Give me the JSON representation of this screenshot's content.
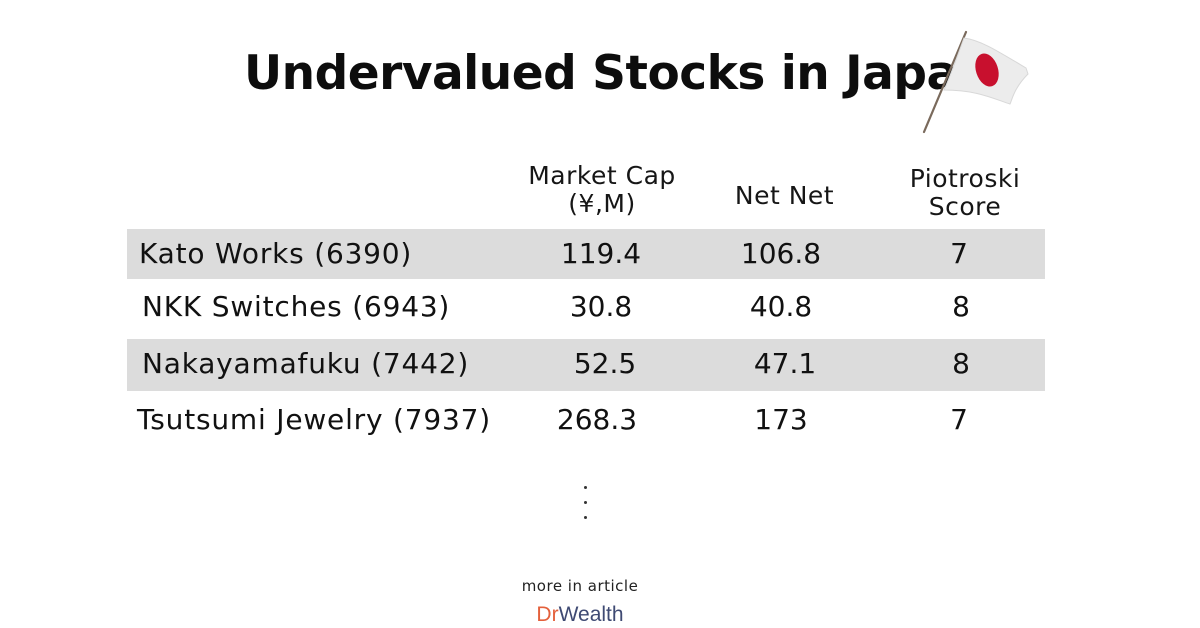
{
  "title": "Undervalued Stocks in Japan",
  "columns": {
    "market_cap_line1": "Market Cap",
    "market_cap_line2": "(¥,M)",
    "net_net": "Net Net",
    "piotroski_line1": "Piotroski",
    "piotroski_line2": "Score"
  },
  "rows": [
    {
      "name": "Kato Works (6390)",
      "market_cap": "119.4",
      "net_net": "106.8",
      "score": "7"
    },
    {
      "name": "NKK Switches (6943)",
      "market_cap": "30.8",
      "net_net": "40.8",
      "score": "8"
    },
    {
      "name": "Nakayamafuku (7442)",
      "market_cap": "52.5",
      "net_net": "47.1",
      "score": "8"
    },
    {
      "name": "Tsutsumi Jewelry (7937)",
      "market_cap": "268.3",
      "net_net": "173",
      "score": "7"
    }
  ],
  "footer": {
    "more_text": "more in article",
    "logo_dr": "Dr",
    "logo_wealth": "Wealth"
  },
  "colors": {
    "row_shade": "#dcdcdc",
    "flag_red": "#c8102e",
    "logo_dr": "#e4603b",
    "logo_wealth": "#3f4a73"
  },
  "icons": {
    "flag": "japan-flag-icon",
    "ellipsis": "vertical-ellipsis-icon"
  }
}
